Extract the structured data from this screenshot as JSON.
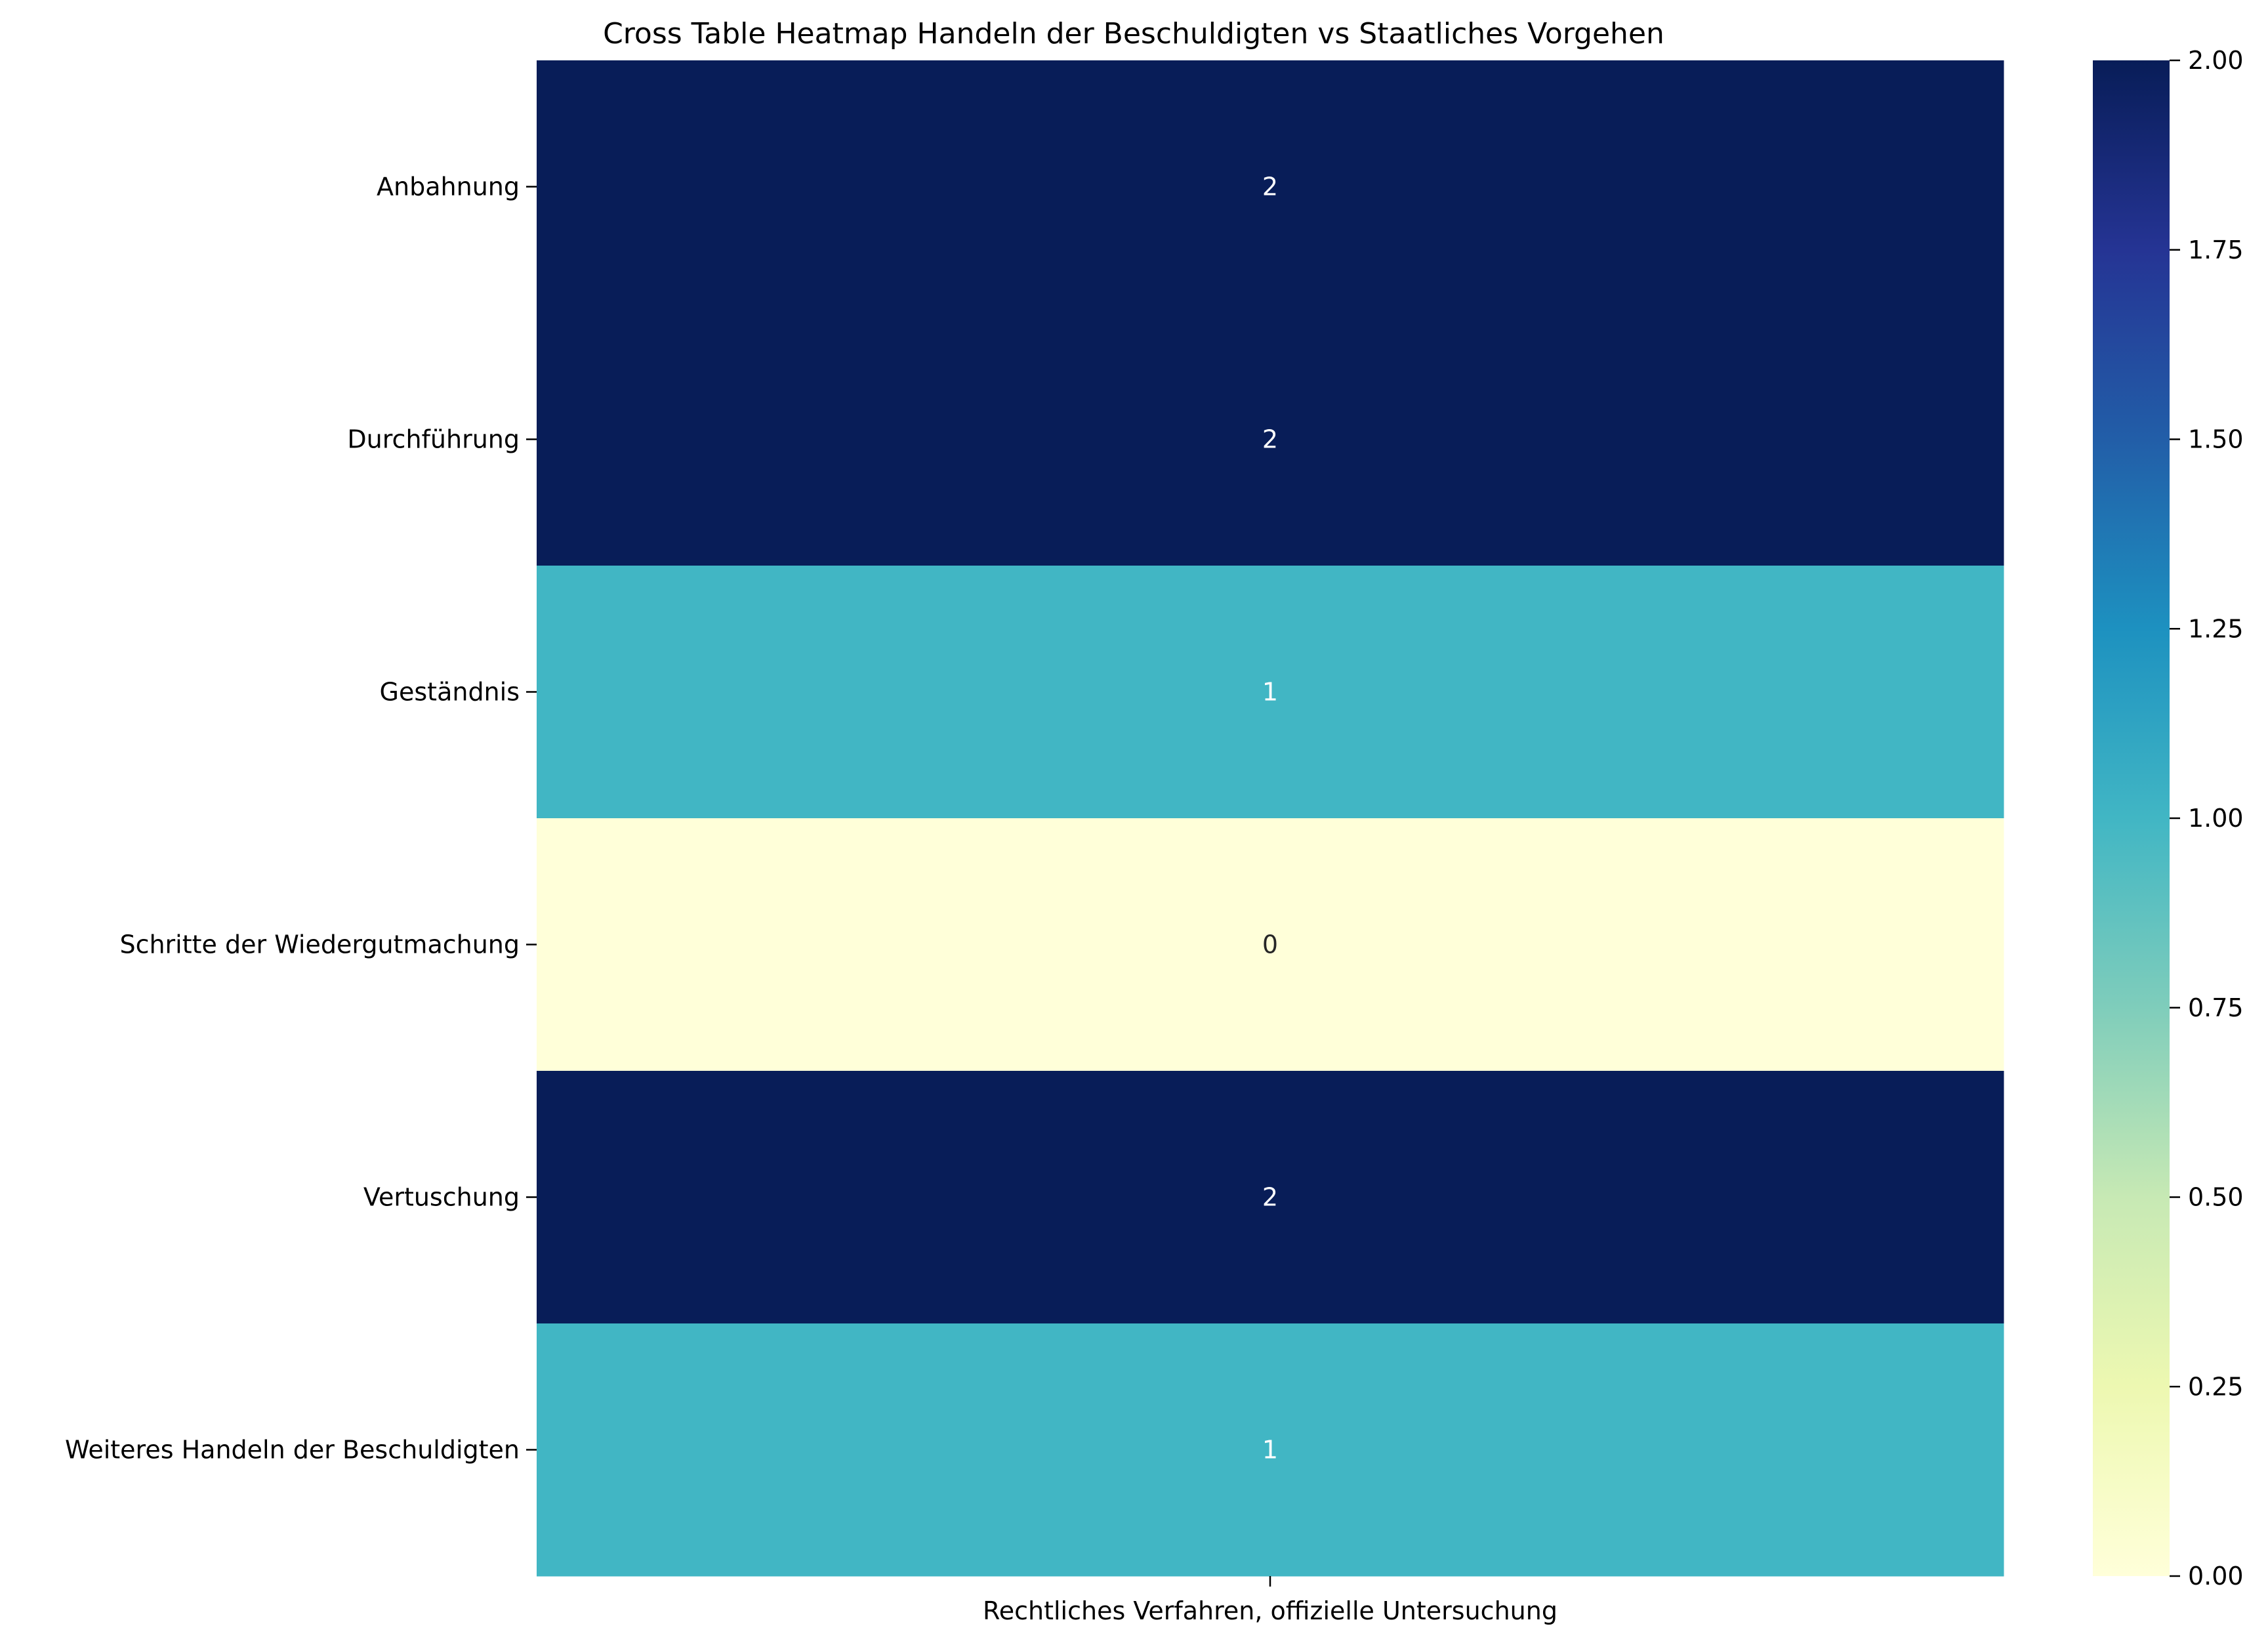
{
  "chart_data": {
    "type": "heatmap",
    "title": "Cross Table Heatmap Handeln der Beschuldigten vs Staatliches Vorgehen",
    "xlabel": "",
    "ylabel": "",
    "columns": [
      "Rechtliches Verfahren, offizielle Untersuchung"
    ],
    "rows": [
      "Anbahnung",
      "Durchführung",
      "Geständnis",
      "Schritte der Wiedergutmachung",
      "Vertuschung",
      "Weiteres Handeln der Beschuldigten"
    ],
    "values": [
      [
        2
      ],
      [
        2
      ],
      [
        1
      ],
      [
        0
      ],
      [
        2
      ],
      [
        1
      ]
    ],
    "colormap": "YlGnBu",
    "vmin": 0,
    "vmax": 2,
    "colorbar_ticks": [
      "0.00",
      "0.25",
      "0.50",
      "0.75",
      "1.00",
      "1.25",
      "1.50",
      "1.75",
      "2.00"
    ],
    "colors": {
      "max": "#081d58",
      "mid": "#41b6c4",
      "min": "#ffffd9"
    }
  }
}
